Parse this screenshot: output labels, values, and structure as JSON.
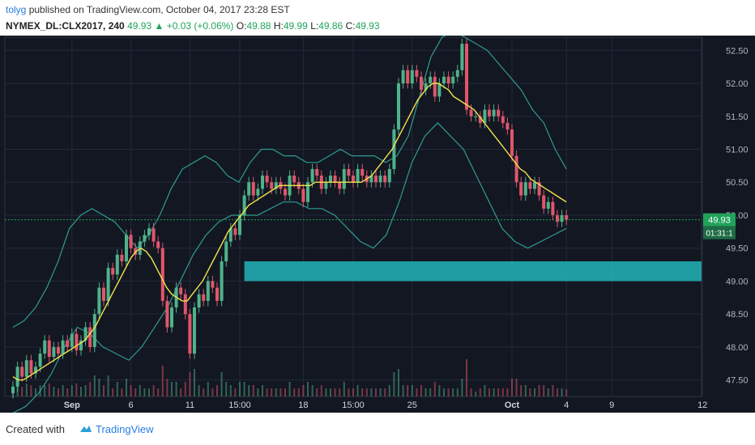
{
  "header": {
    "author": "tolyg",
    "published_text": "published on TradingView.com, October 04, 2017 23:28 EST",
    "symbol": "NYMEX_DL:CLX2017, 240",
    "last": "49.93",
    "change": "+0.03 (+0.06%)",
    "open_label": "O:",
    "open": "49.88",
    "high_label": "H:",
    "high": "49.99",
    "low_label": "L:",
    "low": "49.86",
    "close_label": "C:",
    "close": "49.93"
  },
  "footer": {
    "created_with": "Created with",
    "brand": "TradingView",
    "logo_icon": "tradingview-cloud-icon"
  },
  "colors": {
    "background": "#131722",
    "grid": "#222a3a",
    "up": "#4fb28a",
    "down": "#e0566b",
    "sma": "#f4e44d",
    "band": "#2e9b90",
    "zone": "#22b5b8",
    "price_tag": "#21a35b"
  },
  "chart_data": {
    "type": "candlestick",
    "instrument": "NYMEX_DL:CLX2017",
    "interval": "240",
    "ylim": [
      47.25,
      52.7
    ],
    "y_ticks": [
      "52.50",
      "52.00",
      "51.50",
      "51.00",
      "50.50",
      "50.00",
      "49.50",
      "49.00",
      "48.50",
      "48.00",
      "47.50"
    ],
    "x_tick_labels": [
      {
        "label": "Sep",
        "bar": 13
      },
      {
        "label": "6",
        "bar": 26
      },
      {
        "label": "11",
        "bar": 39
      },
      {
        "label": "15:00",
        "bar": 50
      },
      {
        "label": "18",
        "bar": 64
      },
      {
        "label": "15:00",
        "bar": 75
      },
      {
        "label": "25",
        "bar": 88
      },
      {
        "label": "Oct",
        "bar": 110
      },
      {
        "label": "4",
        "bar": 122
      },
      {
        "label": "9",
        "bar": 132
      },
      {
        "label": "12",
        "bar": 152
      }
    ],
    "last_price": "49.93",
    "countdown": "01:31:1",
    "last_price_value": 49.93,
    "support_zone": [
      49.0,
      49.3
    ],
    "series": [
      {
        "kind": "close",
        "values": [
          47.4,
          47.7,
          47.55,
          47.8,
          47.6,
          47.7,
          47.9,
          48.1,
          47.85,
          48.0,
          47.9,
          48.1,
          48.0,
          48.2,
          47.95,
          48.1,
          48.3,
          48.0,
          48.5,
          48.9,
          48.7,
          49.2,
          49.1,
          49.4,
          49.3,
          49.7,
          49.5,
          49.4,
          49.6,
          49.7,
          49.8,
          49.6,
          49.5,
          48.7,
          48.3,
          48.6,
          48.9,
          48.8,
          48.5,
          47.9,
          48.6,
          48.8,
          48.7,
          49.0,
          48.9,
          48.7,
          49.3,
          49.6,
          49.8,
          49.7,
          50.0,
          50.3,
          50.5,
          50.3,
          50.4,
          50.6,
          50.5,
          50.4,
          50.5,
          50.4,
          50.3,
          50.6,
          50.5,
          50.4,
          50.2,
          50.5,
          50.7,
          50.6,
          50.4,
          50.5,
          50.6,
          50.5,
          50.4,
          50.7,
          50.6,
          50.5,
          50.7,
          50.6,
          50.5,
          50.6,
          50.5,
          50.6,
          50.5,
          50.7,
          51.3,
          52.0,
          52.2,
          52.0,
          52.2,
          52.1,
          51.9,
          52.0,
          52.1,
          51.8,
          52.0,
          52.1,
          52.0,
          52.1,
          52.2,
          52.6,
          51.6,
          51.5,
          51.5,
          51.4,
          51.6,
          51.5,
          51.6,
          51.5,
          51.4,
          51.3,
          50.9,
          50.5,
          50.3,
          50.5,
          50.4,
          50.5,
          50.3,
          50.1,
          50.2,
          50.0,
          49.9,
          50.0,
          49.93
        ]
      },
      {
        "kind": "sma",
        "values": [
          47.55,
          47.5,
          47.5,
          47.55,
          47.6,
          47.65,
          47.7,
          47.75,
          47.8,
          47.85,
          47.9,
          47.95,
          48.0,
          48.05,
          48.1,
          48.2,
          48.3,
          48.45,
          48.6,
          48.75,
          48.9,
          49.05,
          49.2,
          49.35,
          49.45,
          49.5,
          49.45,
          49.35,
          49.2,
          49.05,
          48.9,
          48.8,
          48.75,
          48.7,
          48.7,
          48.8,
          48.9,
          49.0,
          49.15,
          49.3,
          49.45,
          49.6,
          49.75,
          49.85,
          49.95,
          50.05,
          50.15,
          50.2,
          50.25,
          50.3,
          50.35,
          50.4,
          50.45,
          50.45,
          50.45,
          50.45,
          50.45,
          50.45,
          50.45,
          50.5,
          50.5,
          50.5,
          50.5,
          50.5,
          50.5,
          50.5,
          50.5,
          50.5,
          50.5,
          50.55,
          50.6,
          50.7,
          50.8,
          50.9,
          51.0,
          51.15,
          51.3,
          51.45,
          51.6,
          51.75,
          51.85,
          51.95,
          52.0,
          52.0,
          51.95,
          51.9,
          51.8,
          51.75,
          51.7,
          51.65,
          51.6,
          51.5,
          51.4,
          51.3,
          51.2,
          51.1,
          51.0,
          50.9,
          50.8,
          50.7,
          50.65,
          50.55,
          50.5,
          50.45,
          50.4,
          50.35,
          50.3,
          50.25,
          50.2
        ]
      },
      {
        "kind": "upper_band",
        "values": [
          48.3,
          48.4,
          48.6,
          48.9,
          49.3,
          49.8,
          50.0,
          50.1,
          50.0,
          49.9,
          49.7,
          49.5,
          49.7,
          50.0,
          50.4,
          50.7,
          50.8,
          50.9,
          50.8,
          50.6,
          50.5,
          50.8,
          51.0,
          51.0,
          50.9,
          50.9,
          50.8,
          50.8,
          50.9,
          51.0,
          50.9,
          50.9,
          50.9,
          50.8,
          50.9,
          51.2,
          51.8,
          52.4,
          52.7,
          52.8,
          52.7,
          52.6,
          52.5,
          52.3,
          52.1,
          51.9,
          51.6,
          51.4,
          51.0,
          50.7
        ]
      },
      {
        "kind": "lower_band",
        "values": [
          47.0,
          47.1,
          47.3,
          47.6,
          48.0,
          48.3,
          48.2,
          48.0,
          47.9,
          47.8,
          48.0,
          48.3,
          48.6,
          49.0,
          49.4,
          49.7,
          49.9,
          50.0,
          50.0,
          50.0,
          50.1,
          50.2,
          50.2,
          50.1,
          50.1,
          50.0,
          49.8,
          49.6,
          49.5,
          49.7,
          50.2,
          50.8,
          51.2,
          51.4,
          51.2,
          51.0,
          50.6,
          50.2,
          49.8,
          49.6,
          49.5,
          49.6,
          49.7,
          49.8
        ]
      }
    ]
  }
}
